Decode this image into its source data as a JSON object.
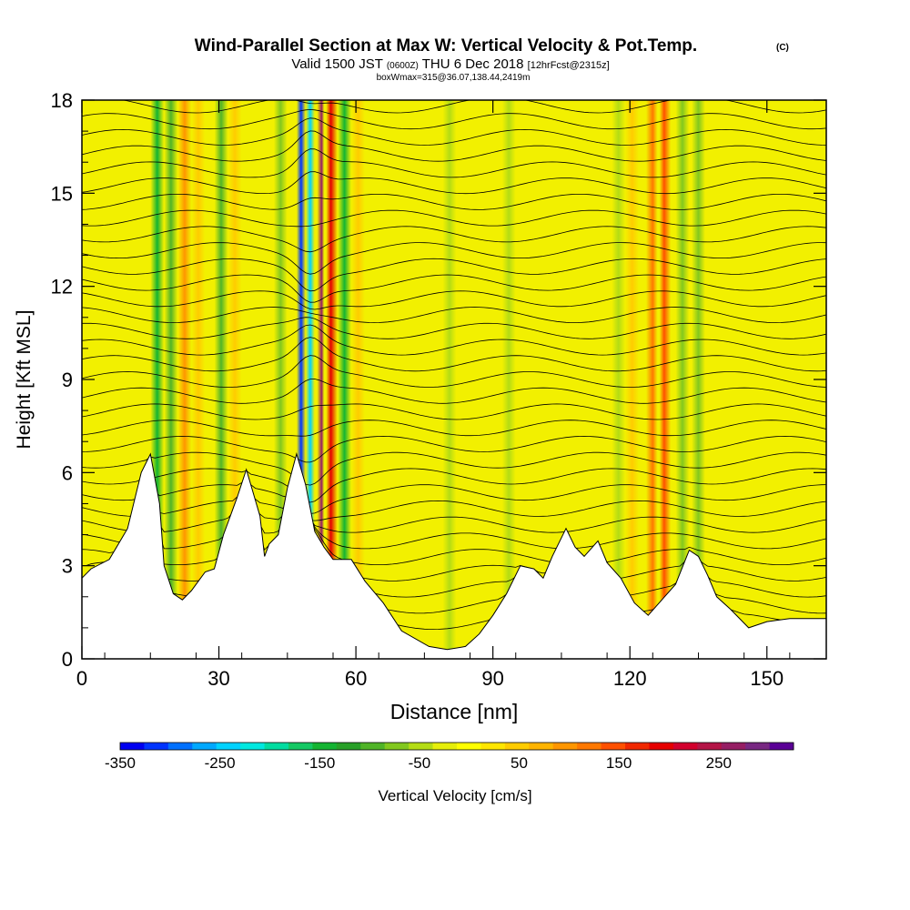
{
  "title": {
    "main": "Wind-Parallel Section at Max W: Vertical Velocity & Pot.Temp.",
    "copyright": "(C)",
    "valid_prefix": "Valid 1500 JST",
    "valid_utc": "(0600Z)",
    "valid_date": "THU 6 Dec 2018",
    "fcst": "[12hrFcst@2315z]",
    "box": "boxWmax=315@36.07,138.44,2419m"
  },
  "chart_data": {
    "type": "heatmap",
    "xlabel": "Distance [nm]",
    "ylabel": "Height [Kft MSL]",
    "xlim": [
      0,
      163
    ],
    "ylim": [
      0,
      18
    ],
    "x_ticks": [
      0,
      30,
      60,
      90,
      120,
      150
    ],
    "y_ticks": [
      0,
      3,
      6,
      9,
      12,
      15,
      18
    ],
    "terrain_profile": {
      "x": [
        0,
        2,
        6,
        10,
        13,
        15,
        17,
        18,
        20,
        22,
        24,
        27,
        29,
        31,
        34,
        36,
        39,
        40,
        41,
        43,
        45,
        47,
        49,
        51,
        53,
        55,
        57,
        59,
        62,
        66,
        70,
        76,
        80,
        84,
        87,
        90,
        93,
        96,
        99,
        101,
        103,
        106,
        108,
        110,
        113,
        115,
        118,
        121,
        124,
        127,
        130,
        133,
        135,
        137,
        139,
        142,
        146,
        150,
        155,
        160,
        163
      ],
      "y": [
        2.6,
        2.9,
        3.2,
        4.2,
        6.0,
        6.6,
        5.0,
        3.0,
        2.1,
        1.9,
        2.2,
        2.8,
        2.9,
        4.0,
        5.2,
        6.1,
        4.6,
        3.3,
        3.7,
        4.0,
        5.5,
        6.6,
        5.6,
        4.1,
        3.6,
        3.2,
        3.2,
        3.2,
        2.5,
        1.8,
        0.9,
        0.4,
        0.3,
        0.4,
        0.8,
        1.4,
        2.1,
        3.0,
        2.9,
        2.6,
        3.3,
        4.2,
        3.6,
        3.3,
        3.8,
        3.1,
        2.6,
        1.8,
        1.4,
        1.9,
        2.4,
        3.5,
        3.3,
        2.7,
        2.0,
        1.6,
        1.0,
        1.2,
        1.3,
        1.3,
        1.3
      ]
    },
    "w_columns": [
      {
        "x": 16.5,
        "w": -150
      },
      {
        "x": 19.5,
        "w": -80
      },
      {
        "x": 22.5,
        "w": 110
      },
      {
        "x": 25.5,
        "w": 70
      },
      {
        "x": 30.5,
        "w": -90
      },
      {
        "x": 33.5,
        "w": 70
      },
      {
        "x": 43.5,
        "w": -60
      },
      {
        "x": 48.0,
        "w": -320
      },
      {
        "x": 50.0,
        "w": -240
      },
      {
        "x": 52.5,
        "w": 280
      },
      {
        "x": 54.5,
        "w": 200
      },
      {
        "x": 57.5,
        "w": -130
      },
      {
        "x": 60.5,
        "w": 70
      },
      {
        "x": 80.5,
        "w": -40
      },
      {
        "x": 93.5,
        "w": -30
      },
      {
        "x": 117.5,
        "w": -50
      },
      {
        "x": 120.5,
        "w": 60
      },
      {
        "x": 125.0,
        "w": 130
      },
      {
        "x": 127.5,
        "w": 150
      },
      {
        "x": 131.5,
        "w": -60
      },
      {
        "x": 135.0,
        "w": -70
      }
    ],
    "legend": {
      "title": "Vertical Velocity [cm/s]",
      "tick_labels": [
        "-350",
        "-250",
        "-150",
        "-50",
        "50",
        "150",
        "250"
      ],
      "colors": [
        "#0000f0",
        "#0034ff",
        "#0070ff",
        "#00a8ff",
        "#00d2ff",
        "#00e8e0",
        "#00dca0",
        "#14c864",
        "#14b432",
        "#28a028",
        "#50b428",
        "#82c81e",
        "#b4dc14",
        "#e6ee0a",
        "#ffff00",
        "#ffe600",
        "#ffcc00",
        "#ffb400",
        "#ff9600",
        "#ff7800",
        "#ff5000",
        "#f02800",
        "#e60000",
        "#d2002d",
        "#b41446",
        "#961e64",
        "#782882",
        "#5a0096"
      ]
    }
  }
}
